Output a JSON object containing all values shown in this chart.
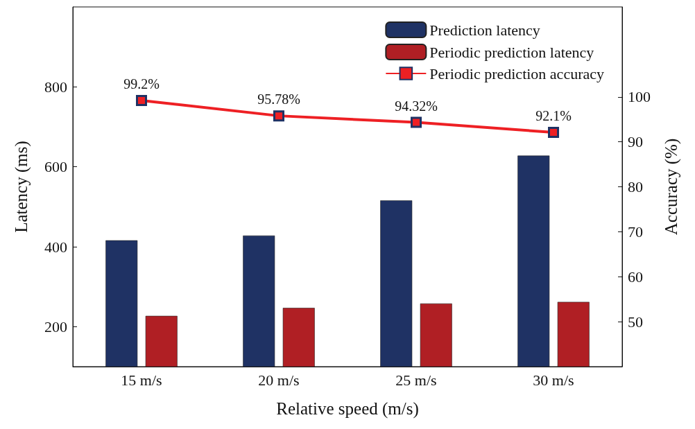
{
  "chart_data": {
    "type": "bar",
    "xlabel": "Relative speed (m/s)",
    "ylabel": "Latency (ms)",
    "y2label": "Accuracy (%)",
    "categories": [
      "15 m/s",
      "20 m/s",
      "25 m/s",
      "30 m/s"
    ],
    "series": [
      {
        "name": "Prediction latency",
        "color": "#1f3264",
        "values": [
          416,
          428,
          516,
          628
        ]
      },
      {
        "name": "Periodic prediction latency",
        "color": "#b01f24",
        "values": [
          227,
          247,
          258,
          262
        ]
      },
      {
        "name": "Periodic prediction accuracy",
        "type": "line",
        "axis": "y2",
        "color": "#ee2024",
        "values": [
          99.2,
          95.78,
          94.32,
          92.1
        ],
        "value_labels": [
          "99.2%",
          "95.78%",
          "94.32%",
          "92.1%"
        ],
        "marker": "square"
      }
    ],
    "ylim": [
      100,
      1000
    ],
    "yticks": [
      200,
      400,
      600,
      800
    ],
    "y2lim": [
      40,
      120
    ],
    "y2ticks": [
      50,
      60,
      70,
      80,
      90,
      100
    ],
    "legend": "top right",
    "grid": false
  }
}
